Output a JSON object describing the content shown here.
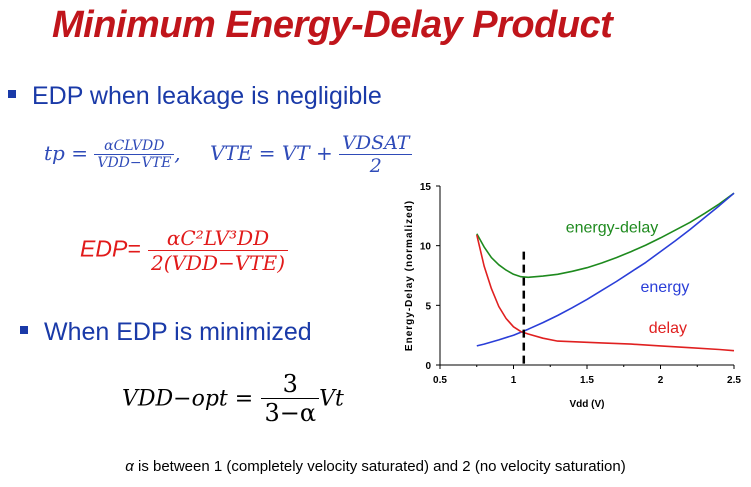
{
  "slide": {
    "title": "Minimum Energy-Delay Product",
    "bullet1": "EDP when leakage is negligible",
    "bullet2": "When EDP is minimized",
    "caption_alpha": "α",
    "caption_rest": " is between 1 (completely velocity saturated) and 2 (no velocity saturation)"
  },
  "equations": {
    "tp_lhs": "tp =",
    "tp_num": "αCLVDD",
    "tp_den": "VDD−VTE",
    "vte_lhs": "VTE = VT +",
    "vte_num": "VDSAT",
    "vte_den": "2",
    "edp_lhs": "EDP=",
    "edp_num": "αC²LV³DD",
    "edp_den": "2(VDD−VTE)",
    "vopt_lhs": "VDD−opt =",
    "vopt_num": "3",
    "vopt_den": "3−α",
    "vopt_tail": "Vt"
  },
  "colors": {
    "title": "#c0151b",
    "bullet": "#1a3aa8",
    "energy_delay": "#1e8a1e",
    "energy": "#2a3ed8",
    "delay": "#e02020"
  },
  "chart_data": {
    "type": "line",
    "xlabel": "Vdd (V)",
    "ylabel": "Energy-Delay (normalized)",
    "xlim": [
      0.5,
      2.5
    ],
    "ylim": [
      0,
      15
    ],
    "xticks": [
      "0.5",
      "1",
      "1.5",
      "2",
      "2.5"
    ],
    "yticks": [
      "0",
      "5",
      "10",
      "15"
    ],
    "grid": false,
    "series": [
      {
        "name": "energy-delay",
        "x": [
          0.75,
          0.8,
          0.85,
          0.9,
          0.95,
          1.0,
          1.05,
          1.1,
          1.2,
          1.3,
          1.4,
          1.5,
          1.6,
          1.7,
          1.8,
          1.9,
          2.0,
          2.1,
          2.2,
          2.3,
          2.4,
          2.5
        ],
        "y": [
          11.0,
          9.9,
          9.0,
          8.4,
          7.95,
          7.6,
          7.4,
          7.35,
          7.45,
          7.6,
          7.85,
          8.15,
          8.55,
          9.0,
          9.5,
          10.05,
          10.65,
          11.3,
          11.95,
          12.7,
          13.5,
          14.4
        ]
      },
      {
        "name": "energy",
        "x": [
          0.75,
          0.8,
          0.9,
          1.0,
          1.1,
          1.2,
          1.3,
          1.4,
          1.5,
          1.6,
          1.7,
          1.8,
          1.9,
          2.0,
          2.1,
          2.2,
          2.3,
          2.4,
          2.5
        ],
        "y": [
          1.6,
          1.75,
          2.1,
          2.5,
          3.0,
          3.55,
          4.15,
          4.8,
          5.5,
          6.25,
          7.0,
          7.8,
          8.6,
          9.5,
          10.4,
          11.35,
          12.35,
          13.35,
          14.4
        ]
      },
      {
        "name": "delay",
        "x": [
          0.75,
          0.8,
          0.85,
          0.9,
          0.95,
          1.0,
          1.05,
          1.1,
          1.2,
          1.3,
          1.4,
          1.5,
          1.6,
          1.8,
          2.0,
          2.2,
          2.4,
          2.5
        ],
        "y": [
          10.9,
          8.3,
          6.4,
          4.9,
          3.9,
          3.2,
          2.8,
          2.6,
          2.25,
          2.0,
          1.95,
          1.9,
          1.85,
          1.75,
          1.6,
          1.45,
          1.3,
          1.2
        ]
      }
    ],
    "annotations": {
      "optimum_x": 1.07,
      "label_energy_delay": "energy-delay",
      "label_energy": "energy",
      "label_delay": "delay"
    }
  }
}
